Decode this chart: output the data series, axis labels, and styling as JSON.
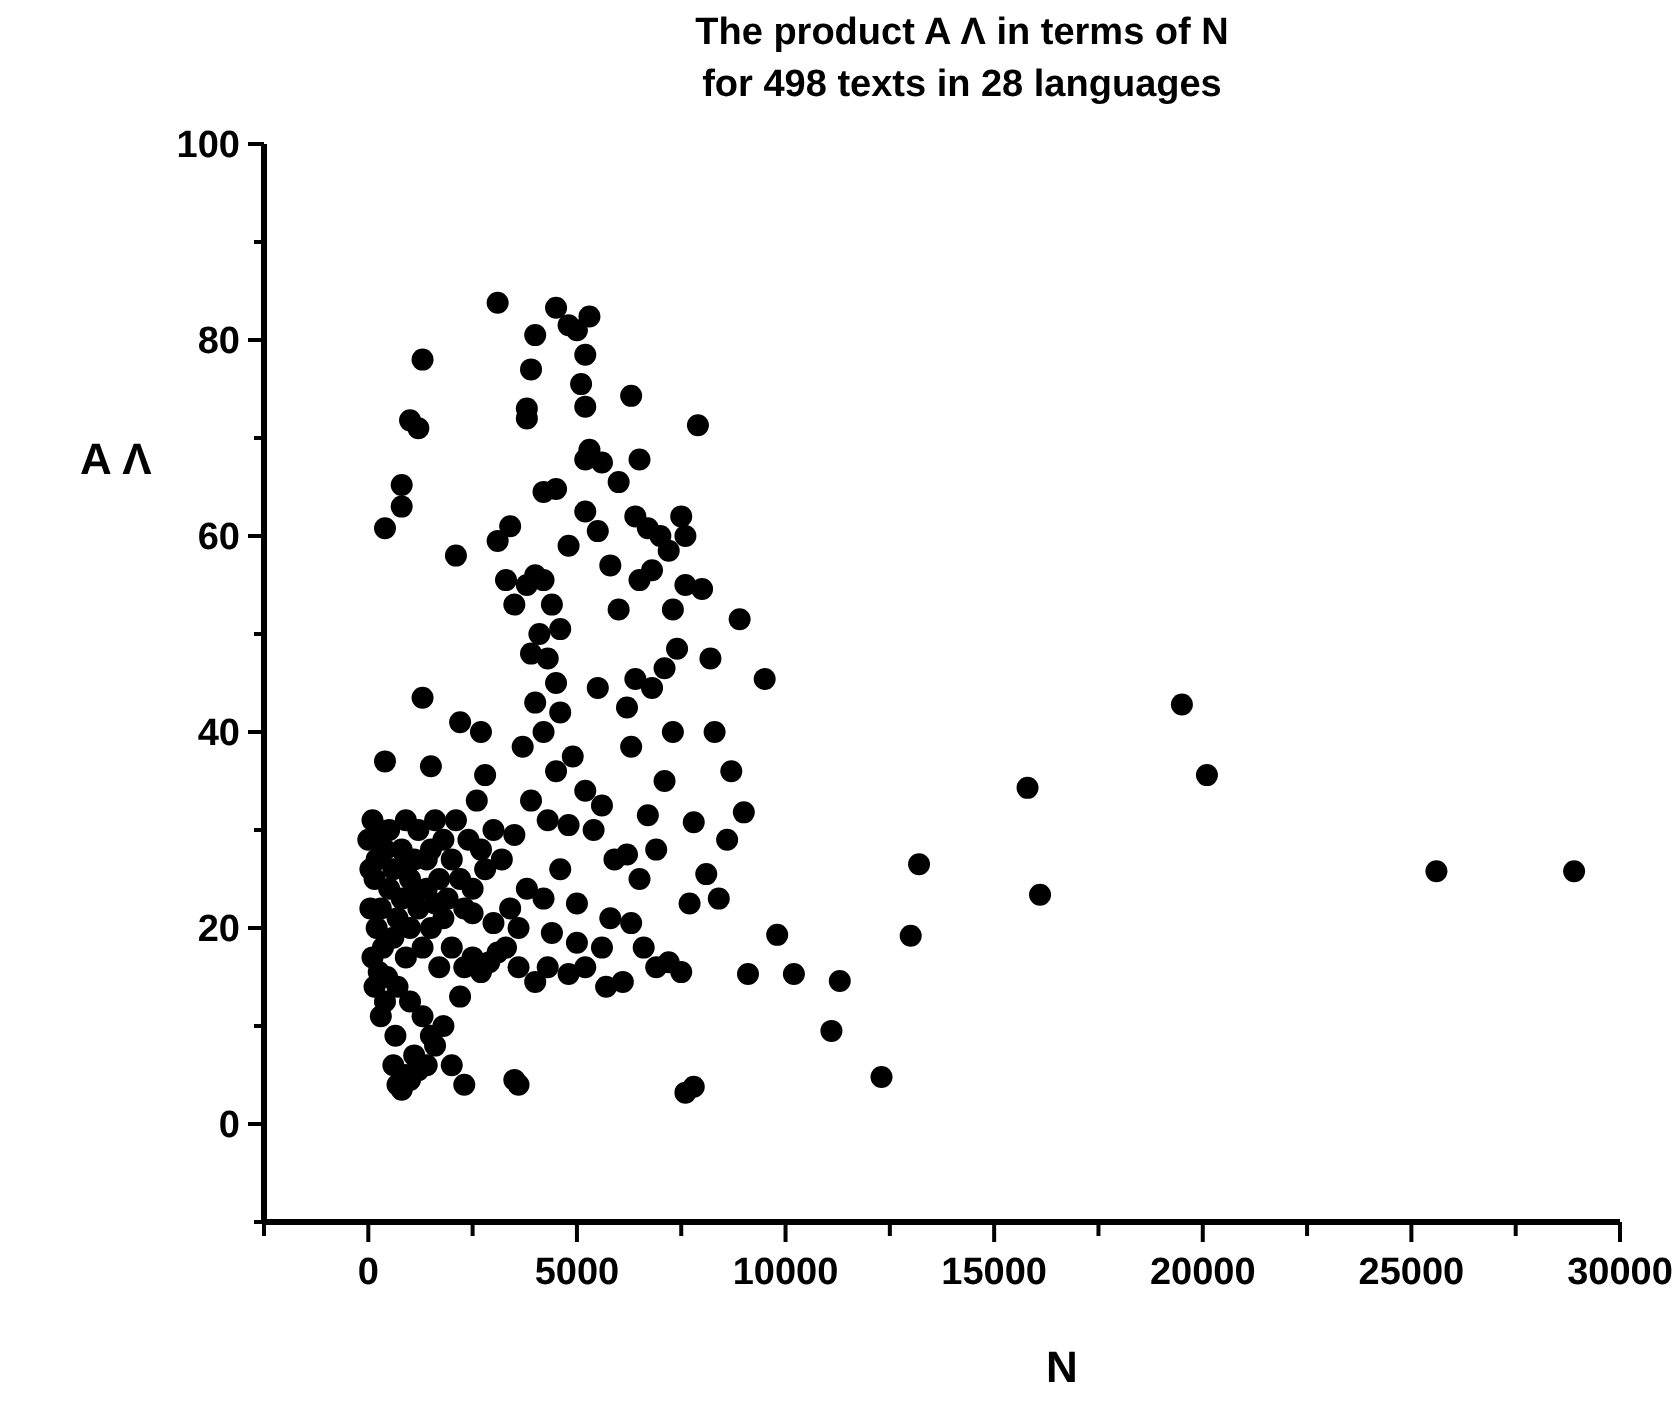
{
  "chart_data": {
    "type": "scatter",
    "title": "The product A Λ in terms of N\nfor 498 texts in 28 languages",
    "xlabel": "N",
    "ylabel": "A Λ",
    "xlim": [
      -2500,
      30000
    ],
    "ylim": [
      -10,
      100
    ],
    "xticks": [
      {
        "value": -2500,
        "label": null
      },
      0,
      {
        "value": 2500,
        "label": null
      },
      5000,
      {
        "value": 7500,
        "label": null
      },
      10000,
      {
        "value": 12500,
        "label": null
      },
      15000,
      {
        "value": 17500,
        "label": null
      },
      20000,
      {
        "value": 22500,
        "label": null
      },
      25000,
      {
        "value": 27500,
        "label": null
      },
      30000
    ],
    "yticks": [
      {
        "value": -10,
        "label": null
      },
      0,
      {
        "value": 10,
        "label": null
      },
      20,
      {
        "value": 30,
        "label": null
      },
      40,
      {
        "value": 50,
        "label": null
      },
      60,
      {
        "value": 70,
        "label": null
      },
      80,
      {
        "value": 90,
        "label": null
      },
      100
    ],
    "grid": false,
    "marker": "circle",
    "series": [
      {
        "color": "#000000",
        "x": [
          28900,
          25600,
          20100,
          19500,
          16100,
          15800,
          13200,
          13000,
          12300,
          11300,
          11100,
          10200,
          9800,
          9500,
          9100,
          9000,
          8900,
          8700,
          8600,
          8400,
          8300,
          8200,
          8000,
          7900,
          7800,
          7600,
          7500,
          7700,
          7800,
          8100,
          5300,
          5200,
          5000,
          4800,
          4500,
          3100,
          4000,
          3900,
          3800,
          3800,
          5100,
          5200,
          5300,
          5200,
          5600,
          6000,
          6300,
          6500,
          6400,
          6700,
          6800,
          6500,
          7000,
          7200,
          7300,
          7500,
          7600,
          7600,
          7400,
          7100,
          6800,
          6400,
          6200,
          6300,
          6000,
          5800,
          5500,
          5200,
          4800,
          4500,
          4200,
          3400,
          3100,
          3300,
          3500,
          3800,
          4000,
          4200,
          4400,
          4600,
          4300,
          4500,
          4600,
          4200,
          3700,
          4500,
          4900,
          5200,
          5600,
          5400,
          4800,
          4300,
          3900,
          3500,
          3200,
          2800,
          2800,
          2700,
          2200,
          1300,
          1500,
          400,
          2100,
          400,
          800,
          800,
          1000,
          1200,
          1300,
          4000,
          4100,
          3900,
          5500,
          5900,
          6300,
          6600,
          6900,
          7200,
          5600,
          5200,
          4800,
          4300,
          4000,
          3600,
          3100,
          2700,
          2300,
          2000,
          1800,
          2500,
          3000,
          3400,
          3800,
          4200,
          4600,
          5000,
          5800,
          6200,
          6700,
          7100,
          7300,
          6900,
          6500,
          6100,
          5700,
          5000,
          4400,
          3600,
          3300,
          2900,
          2500,
          0,
          100,
          150,
          200,
          100,
          150,
          300,
          400,
          200,
          300,
          400,
          500,
          500,
          600,
          600,
          700,
          800,
          800,
          900,
          900,
          1000,
          1000,
          1100,
          1200,
          1200,
          1300,
          1400,
          1500,
          1500,
          1600,
          1700,
          1700,
          1800,
          1900,
          2000,
          2100,
          2200,
          2300,
          2400,
          2600,
          350,
          450,
          700,
          1000,
          1300,
          1500,
          1100,
          900,
          700,
          600,
          800,
          1000,
          1200,
          1400,
          1600,
          2000,
          2300,
          3500,
          3600,
          1800,
          2200,
          650,
          250,
          50,
          50,
          250,
          1100,
          1400,
          900,
          1600,
          2700,
          3000,
          2500
        ],
        "values": [
          25.8,
          25.8,
          35.6,
          42.8,
          23.4,
          34.3,
          26.5,
          19.2,
          4.8,
          14.6,
          9.5,
          15.3,
          19.3,
          45.4,
          15.3,
          31.8,
          51.5,
          36,
          29,
          23,
          40,
          47.5,
          54.6,
          71.3,
          3.8,
          3.2,
          15.5,
          22.5,
          30.8,
          25.5,
          82.4,
          78.5,
          81,
          81.5,
          83.3,
          83.8,
          80.5,
          77,
          73,
          72,
          75.5,
          73.2,
          68.8,
          67.8,
          67.5,
          65.5,
          74.3,
          67.8,
          62,
          60.8,
          56.5,
          55.5,
          60,
          58.5,
          52.5,
          62,
          60,
          55,
          48.5,
          46.5,
          44.5,
          45.4,
          42.5,
          38.5,
          52.5,
          57,
          60.5,
          62.5,
          59,
          64.8,
          64.5,
          61,
          59.5,
          55.5,
          53,
          55,
          56,
          55.5,
          53,
          50.5,
          47.5,
          45,
          42,
          40,
          38.5,
          36,
          37.5,
          34,
          32.5,
          30,
          30.5,
          31,
          33,
          29.5,
          27,
          26,
          35.6,
          40,
          41,
          43.5,
          36.5,
          37,
          58,
          60.8,
          63,
          65.2,
          71.8,
          71,
          78,
          43,
          50,
          48,
          44.5,
          27,
          20.5,
          18,
          16,
          16.5,
          18,
          16,
          15.3,
          16,
          14.5,
          16,
          17.5,
          15.5,
          16,
          18,
          21,
          21.5,
          20.5,
          22,
          24,
          23,
          26,
          22.5,
          21,
          27.5,
          31.5,
          35,
          40,
          28,
          25,
          14.5,
          14,
          18.5,
          19.5,
          20,
          18,
          16.5,
          17,
          29,
          31,
          25,
          20,
          17,
          14,
          11,
          12.5,
          27,
          22,
          28,
          24,
          30,
          19,
          26,
          21,
          28,
          23,
          17,
          31,
          25,
          20,
          27,
          22,
          30,
          18,
          24,
          28,
          20,
          31,
          25,
          16,
          29,
          23,
          27,
          31,
          25,
          22,
          29,
          33,
          18,
          15,
          14,
          12.5,
          11,
          9,
          7,
          5,
          4,
          6,
          3.5,
          4.5,
          5.5,
          6,
          8,
          6,
          4,
          4.5,
          4,
          10,
          13,
          9,
          15.5,
          22,
          26,
          30,
          23.5,
          27,
          26,
          22.5,
          28,
          30,
          24
        ]
      }
    ]
  }
}
